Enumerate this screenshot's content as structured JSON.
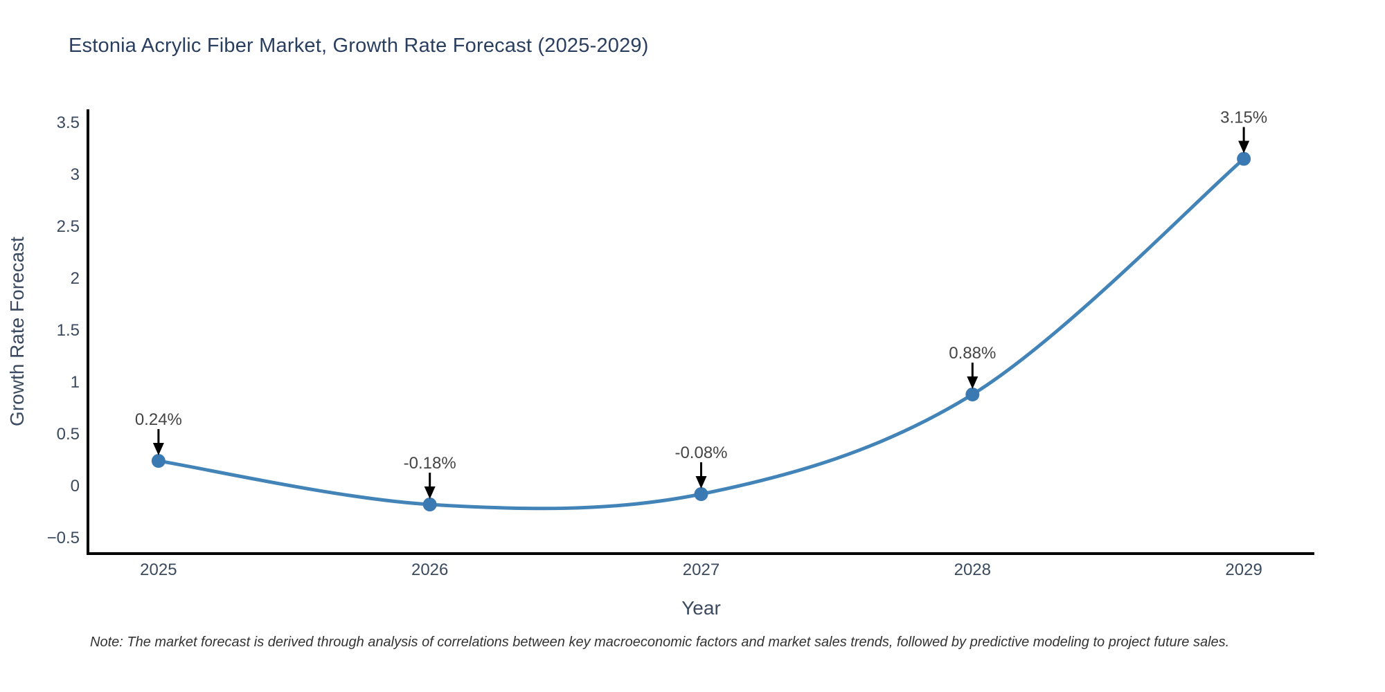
{
  "title": "Estonia Acrylic Fiber Market, Growth Rate Forecast (2025-2029)",
  "note": "Note: The market forecast is derived through analysis of correlations between key macroeconomic factors and market sales trends, followed by predictive modeling to project future sales.",
  "chart_data": {
    "type": "line",
    "title": "Estonia Acrylic Fiber Market, Growth Rate Forecast (2025-2029)",
    "xlabel": "Year",
    "ylabel": "Growth Rate Forecast",
    "x": [
      2025,
      2026,
      2027,
      2028,
      2029
    ],
    "values": [
      0.24,
      -0.18,
      -0.08,
      0.88,
      3.15
    ],
    "point_labels": [
      "0.24%",
      "-0.18%",
      "-0.08%",
      "0.88%",
      "3.15%"
    ],
    "x_tick_labels": [
      "2025",
      "2026",
      "2027",
      "2028",
      "2029"
    ],
    "y_tick_values": [
      3.5,
      3,
      2.5,
      2,
      1.5,
      1,
      0.5,
      0,
      -0.5
    ],
    "y_tick_labels": [
      "3.5",
      "3",
      "2.5",
      "2",
      "1.5",
      "1",
      "0.5",
      "0",
      "−0.5"
    ],
    "xlim": [
      2024.74,
      2029.26
    ],
    "ylim": [
      -0.653,
      3.627
    ],
    "grid": false,
    "line_shape": "spline",
    "legend": "none",
    "colors": {
      "line": "#4384b8",
      "marker": "#3a79b2",
      "axis_line": "#000000",
      "tick_label": "#3b4a5f",
      "axis_title": "#3b4a5f",
      "annotation_text": "#444444",
      "annotation_arrow": "#000000",
      "title": "#2a3f5f",
      "background": "#ffffff"
    }
  }
}
